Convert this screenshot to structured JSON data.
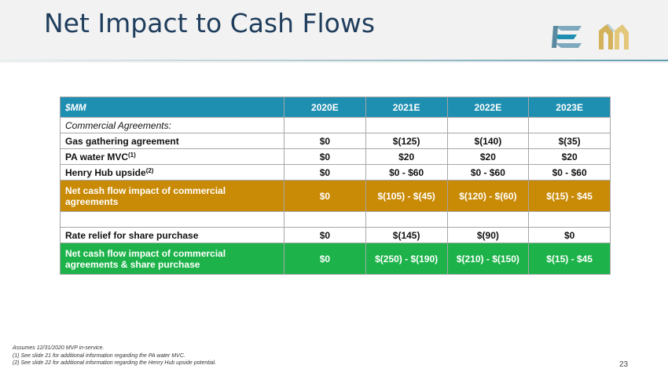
{
  "slide": {
    "title": "Net Impact to Cash Flows",
    "page_number": "23"
  },
  "table": {
    "header": [
      "$MM",
      "2020E",
      "2021E",
      "2022E",
      "2023E"
    ],
    "rows": [
      {
        "label": "Commercial Agreements:",
        "sup": "",
        "values": [
          "",
          "",
          "",
          ""
        ]
      },
      {
        "label": "Gas gathering agreement",
        "sup": "",
        "values": [
          "$0",
          "$(125)",
          "$(140)",
          "$(35)"
        ]
      },
      {
        "label": "PA water MVC",
        "sup": "(1)",
        "values": [
          "$0",
          "$20",
          "$20",
          "$20"
        ]
      },
      {
        "label": "Henry Hub upside",
        "sup": "(2)",
        "values": [
          "$0",
          "$0 - $60",
          "$0 - $60",
          "$0 - $60"
        ]
      },
      {
        "label": "Net cash flow impact of commercial agreements",
        "sup": "",
        "values": [
          "$0",
          "$(105) - $(45)",
          "$(120) - $(60)",
          "$(15) - $45"
        ]
      },
      {
        "label": "",
        "sup": "",
        "values": [
          "",
          "",
          "",
          ""
        ]
      },
      {
        "label": "Rate relief for share purchase",
        "sup": "",
        "values": [
          "$0",
          "$(145)",
          "$(90)",
          "$0"
        ]
      },
      {
        "label": "Net cash flow impact of commercial agreements & share purchase",
        "sup": "",
        "values": [
          "$0",
          "$(250) - $(190)",
          "$(210) - $(150)",
          "$(15) - $45"
        ]
      }
    ]
  },
  "footnotes": {
    "line0": "Assumes 12/31/2020 MVP in-service.",
    "line1": "(1)  See slide 21 for additional information regarding the PA water MVC.",
    "line2": "(2)  See slide 22 for additional information regarding the Henry Hub upside potential."
  },
  "colors": {
    "header_blue": "#1e8fb1",
    "subtotal_orange": "#c98a06",
    "total_green": "#1db34a",
    "title_navy": "#1f3d5c"
  }
}
